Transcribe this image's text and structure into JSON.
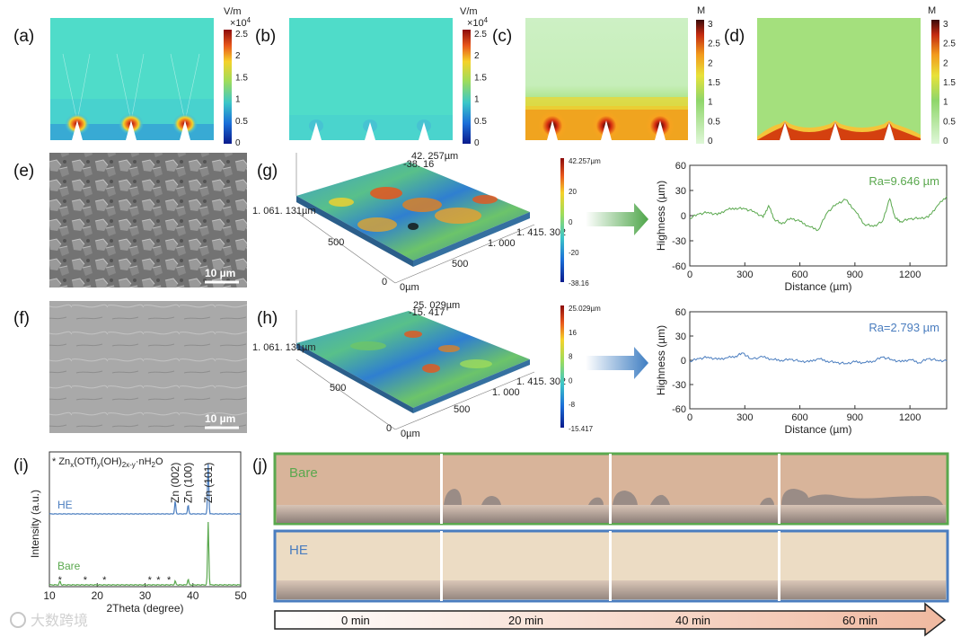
{
  "panels": {
    "a": "(a)",
    "b": "(b)",
    "c": "(c)",
    "d": "(d)",
    "e": "(e)",
    "f": "(f)",
    "g": "(g)",
    "h": "(h)",
    "i": "(i)",
    "j": "(j)"
  },
  "colorbars": {
    "field": {
      "unit": "V/m",
      "multiplier": "×10",
      "exponent": "4",
      "ticks": [
        "2.5",
        "2",
        "1.5",
        "1",
        "0.5",
        "0"
      ]
    },
    "conc": {
      "unit": "M",
      "ticks": [
        "3",
        "2.5",
        "2",
        "1.5",
        "1",
        "0.5",
        "0"
      ]
    },
    "g_scale": {
      "ticks": [
        "42.257µm",
        "20",
        "0",
        "-20",
        "-38.16"
      ]
    },
    "h_scale": {
      "ticks": [
        "25.029µm",
        "16",
        "8",
        "0",
        "-8",
        "-15.417"
      ]
    }
  },
  "sem": {
    "scale_e": "10 µm",
    "scale_f": "10 µm"
  },
  "surface3d": {
    "g": {
      "top_label": "42. 257µm",
      "top_label2": "-38. 16",
      "y_end": "1. 061. 131µm",
      "x_end": "1. 415. 302",
      "x_ticks": [
        "1. 000",
        "500"
      ],
      "y_ticks": [
        "500",
        "0"
      ],
      "origin": "0µm"
    },
    "h": {
      "top_label": "25. 029µm",
      "top_label2": "-15. 417",
      "y_end": "1. 061. 131µm",
      "x_end": "1. 415. 302",
      "x_ticks": [
        "1. 000",
        "500"
      ],
      "y_ticks": [
        "500",
        "0"
      ],
      "origin": "0µm"
    }
  },
  "chart_data": [
    {
      "type": "line",
      "title": "",
      "xlabel": "Distance (µm)",
      "ylabel": "Highness (µm)",
      "xlim": [
        0,
        1400
      ],
      "ylim": [
        -60,
        60
      ],
      "xticks": [
        "0",
        "300",
        "600",
        "900",
        "1200"
      ],
      "yticks": [
        "60",
        "30",
        "0",
        "-30",
        "-60"
      ],
      "annotation": "Ra=9.646 µm",
      "color": "#5aa84e",
      "x": [
        0,
        50,
        100,
        150,
        200,
        250,
        300,
        350,
        400,
        430,
        460,
        500,
        550,
        600,
        650,
        700,
        750,
        800,
        850,
        900,
        950,
        1000,
        1050,
        1090,
        1120,
        1150,
        1200,
        1250,
        1300,
        1350,
        1400
      ],
      "y": [
        -3,
        2,
        4,
        1,
        7,
        9,
        8,
        5,
        -2,
        12,
        -4,
        -10,
        -3,
        -7,
        -13,
        -17,
        4,
        14,
        19,
        6,
        -10,
        -13,
        -7,
        20,
        -3,
        -7,
        -4,
        -3,
        -2,
        12,
        23
      ]
    },
    {
      "type": "line",
      "title": "",
      "xlabel": "Distance (µm)",
      "ylabel": "Highness (µm)",
      "xlim": [
        0,
        1400
      ],
      "ylim": [
        -60,
        60
      ],
      "xticks": [
        "0",
        "300",
        "600",
        "900",
        "1200"
      ],
      "yticks": [
        "60",
        "30",
        "0",
        "-30",
        "-60"
      ],
      "annotation": "Ra=2.793 µm",
      "color": "#4a7dbf",
      "x": [
        0,
        50,
        100,
        150,
        200,
        250,
        290,
        330,
        400,
        450,
        500,
        550,
        600,
        650,
        700,
        750,
        800,
        850,
        900,
        950,
        1000,
        1050,
        1100,
        1150,
        1200,
        1250,
        1300,
        1350,
        1400
      ],
      "y": [
        -1,
        2,
        4,
        1,
        3,
        5,
        9,
        2,
        4,
        1,
        0,
        1,
        -1,
        -2,
        2,
        -1,
        -3,
        -4,
        -2,
        -3,
        -1,
        4,
        1,
        -2,
        1,
        -3,
        2,
        0,
        -1
      ]
    },
    {
      "type": "line",
      "title": "",
      "xlabel": "2Theta (degree)",
      "ylabel": "Intensity (a.u.)",
      "xlim": [
        10,
        50
      ],
      "xticks": [
        "10",
        "20",
        "30",
        "40",
        "50"
      ],
      "legend_note": "* Zn",
      "legend_note_sub": "x",
      "legend_note_2": "(OTf)",
      "legend_note_sub2": "y",
      "legend_note_3": "(OH)",
      "legend_note_sub3": "2x-y",
      "legend_note_4": "·nH",
      "legend_note_sub4": "2",
      "legend_note_5": "O",
      "peak_labels": [
        "Zn (002)",
        "Zn (100)",
        "Zn (101)"
      ],
      "peak_positions": [
        36.3,
        39.0,
        43.2
      ],
      "series": [
        {
          "name": "HE",
          "color": "#4a7dbf",
          "peaks": [
            [
              36.3,
              0.25
            ],
            [
              39.0,
              0.18
            ],
            [
              43.2,
              1.0
            ]
          ]
        },
        {
          "name": "Bare",
          "color": "#5aa84e",
          "peaks": [
            [
              12.2,
              0.06
            ],
            [
              36.3,
              0.06
            ],
            [
              39.0,
              0.09
            ],
            [
              43.2,
              1.0
            ]
          ],
          "star_positions": [
            12.2,
            17.5,
            21.5,
            31.0,
            32.8,
            35.0
          ]
        }
      ]
    }
  ],
  "timelapse": {
    "bare_label": "Bare",
    "he_label": "HE",
    "times": [
      "0 min",
      "20 min",
      "40 min",
      "60 min"
    ]
  },
  "watermark": "大数跨境"
}
